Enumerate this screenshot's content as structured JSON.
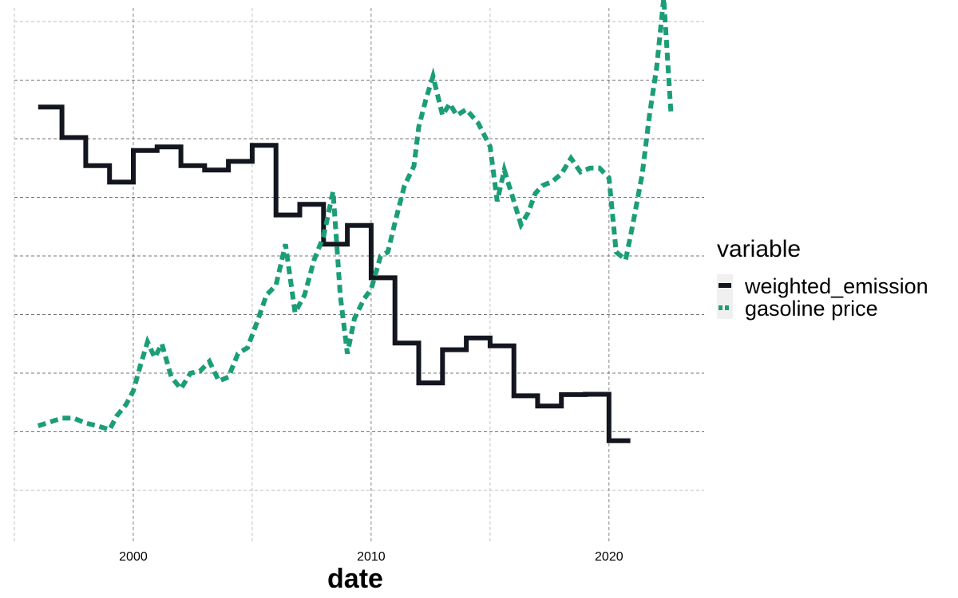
{
  "chart_data": {
    "type": "line",
    "xlabel": "date",
    "ylabel": "",
    "x_ticks": [
      "2000",
      "2010",
      "2020"
    ],
    "grid": true,
    "legend": {
      "title": "variable",
      "placement": "right",
      "entries": [
        "weighted_emission",
        "gasoline price"
      ]
    },
    "series": [
      {
        "name": "weighted_emission",
        "style": "solid",
        "step": true,
        "color": "#13151f",
        "points": [
          [
            1996.0,
            0.781
          ],
          [
            1997.0,
            0.703
          ],
          [
            1998.0,
            0.631
          ],
          [
            1999.0,
            0.589
          ],
          [
            2000.0,
            0.67
          ],
          [
            2001.0,
            0.679
          ],
          [
            2002.0,
            0.631
          ],
          [
            2003.0,
            0.62
          ],
          [
            2004.0,
            0.642
          ],
          [
            2005.0,
            0.683
          ],
          [
            2006.0,
            0.505
          ],
          [
            2007.0,
            0.532
          ],
          [
            2008.0,
            0.43
          ],
          [
            2009.0,
            0.478
          ],
          [
            2010.0,
            0.344
          ],
          [
            2011.0,
            0.177
          ],
          [
            2012.0,
            0.075
          ],
          [
            2013.0,
            0.16
          ],
          [
            2014.0,
            0.19
          ],
          [
            2015.0,
            0.17
          ],
          [
            2016.0,
            0.042
          ],
          [
            2017.0,
            0.016
          ],
          [
            2018.0,
            0.045
          ],
          [
            2019.0,
            0.046
          ],
          [
            2020.0,
            -0.073
          ],
          [
            2020.9,
            -0.073
          ]
        ]
      },
      {
        "name": "gasoline price",
        "style": "dashed",
        "step": false,
        "color": "#1b9e77",
        "points": [
          [
            1996.0,
            -0.035
          ],
          [
            1996.5,
            -0.025
          ],
          [
            1997.0,
            -0.015
          ],
          [
            1997.5,
            -0.015
          ],
          [
            1998.0,
            -0.028
          ],
          [
            1998.5,
            -0.035
          ],
          [
            1999.0,
            -0.045
          ],
          [
            1999.3,
            -0.01
          ],
          [
            1999.7,
            0.02
          ],
          [
            2000.0,
            0.055
          ],
          [
            2000.3,
            0.12
          ],
          [
            2000.6,
            0.18
          ],
          [
            2000.9,
            0.14
          ],
          [
            2001.2,
            0.175
          ],
          [
            2001.6,
            0.09
          ],
          [
            2002.0,
            0.06
          ],
          [
            2002.4,
            0.1
          ],
          [
            2002.8,
            0.105
          ],
          [
            2003.2,
            0.13
          ],
          [
            2003.6,
            0.08
          ],
          [
            2004.0,
            0.09
          ],
          [
            2004.4,
            0.15
          ],
          [
            2004.8,
            0.165
          ],
          [
            2005.2,
            0.23
          ],
          [
            2005.6,
            0.3
          ],
          [
            2006.0,
            0.325
          ],
          [
            2006.4,
            0.43
          ],
          [
            2006.8,
            0.255
          ],
          [
            2007.2,
            0.3
          ],
          [
            2007.6,
            0.39
          ],
          [
            2008.0,
            0.45
          ],
          [
            2008.4,
            0.565
          ],
          [
            2008.7,
            0.3
          ],
          [
            2009.0,
            0.15
          ],
          [
            2009.3,
            0.24
          ],
          [
            2009.7,
            0.29
          ],
          [
            2010.0,
            0.315
          ],
          [
            2010.4,
            0.4
          ],
          [
            2010.7,
            0.41
          ],
          [
            2011.0,
            0.485
          ],
          [
            2011.4,
            0.58
          ],
          [
            2011.8,
            0.63
          ],
          [
            2012.0,
            0.73
          ],
          [
            2012.3,
            0.8
          ],
          [
            2012.6,
            0.86
          ],
          [
            2013.0,
            0.76
          ],
          [
            2013.3,
            0.79
          ],
          [
            2013.6,
            0.76
          ],
          [
            2014.0,
            0.775
          ],
          [
            2014.5,
            0.74
          ],
          [
            2015.0,
            0.68
          ],
          [
            2015.3,
            0.54
          ],
          [
            2015.6,
            0.62
          ],
          [
            2016.0,
            0.54
          ],
          [
            2016.3,
            0.48
          ],
          [
            2016.6,
            0.51
          ],
          [
            2016.9,
            0.56
          ],
          [
            2017.2,
            0.58
          ],
          [
            2017.6,
            0.59
          ],
          [
            2018.0,
            0.61
          ],
          [
            2018.4,
            0.65
          ],
          [
            2018.8,
            0.615
          ],
          [
            2019.2,
            0.625
          ],
          [
            2019.6,
            0.625
          ],
          [
            2020.0,
            0.6
          ],
          [
            2020.3,
            0.41
          ],
          [
            2020.7,
            0.39
          ],
          [
            2021.0,
            0.48
          ],
          [
            2021.4,
            0.61
          ],
          [
            2021.7,
            0.76
          ],
          [
            2022.0,
            0.88
          ],
          [
            2022.3,
            1.06
          ],
          [
            2022.6,
            0.77
          ]
        ]
      }
    ]
  }
}
